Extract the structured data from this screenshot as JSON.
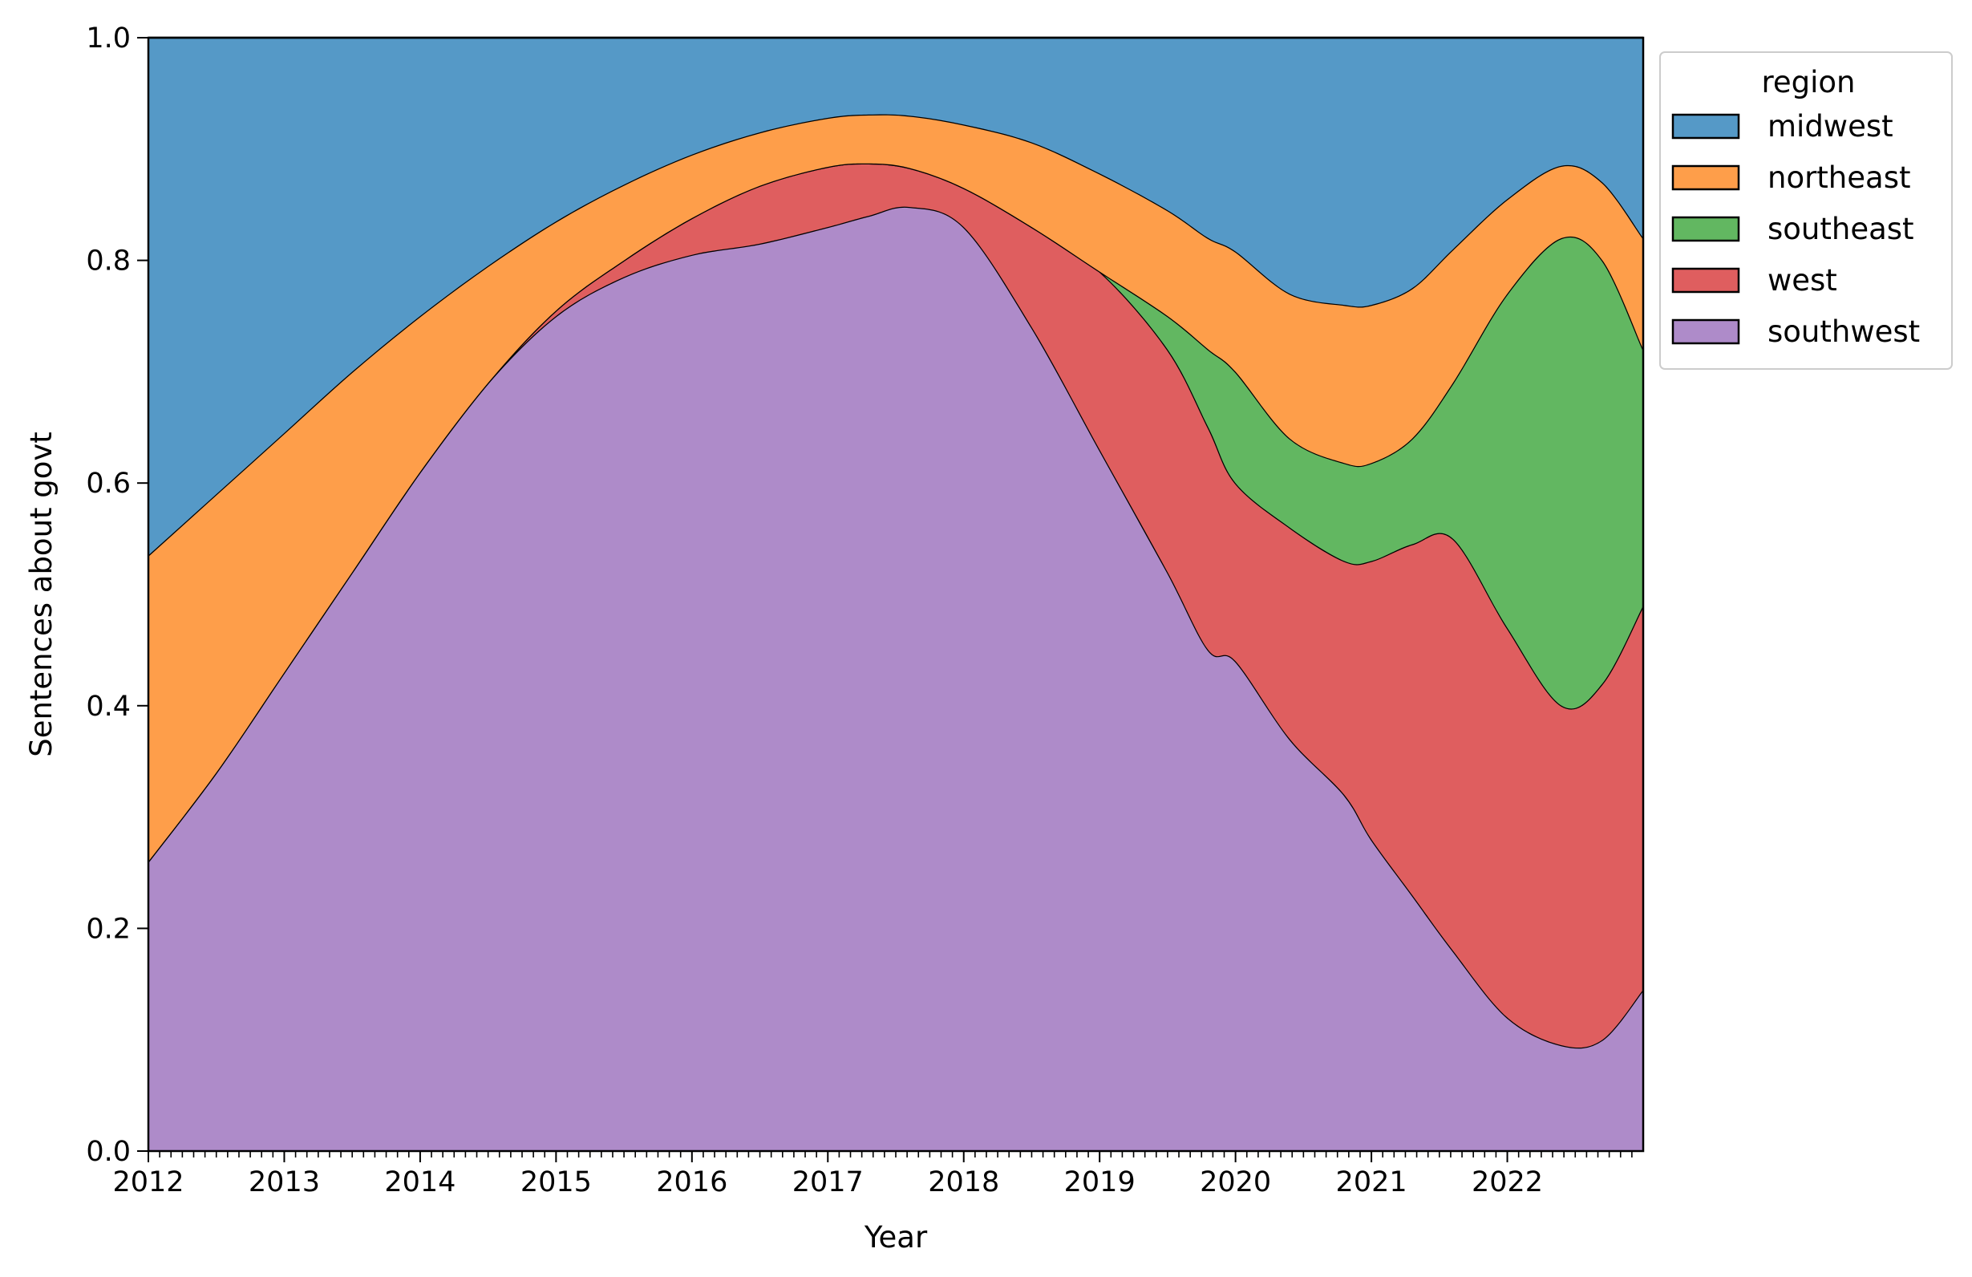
{
  "chart_data": {
    "type": "area",
    "stacked": true,
    "normalized": true,
    "xlabel": "Year",
    "ylabel": "Sentences about govt",
    "xlim": [
      2012,
      2023
    ],
    "ylim": [
      0,
      1
    ],
    "x_ticks": [
      "2012",
      "2013",
      "2014",
      "2015",
      "2016",
      "2017",
      "2018",
      "2019",
      "2020",
      "2021",
      "2022"
    ],
    "y_ticks": [
      "0.0",
      "0.2",
      "0.4",
      "0.6",
      "0.8",
      "1.0"
    ],
    "grid": false,
    "legend": {
      "title": "region",
      "placement": "outside top-right",
      "entries": [
        "midwest",
        "northeast",
        "southeast",
        "west",
        "southwest"
      ]
    },
    "x": [
      2012.0,
      2012.5,
      2013.0,
      2013.5,
      2014.0,
      2014.5,
      2015.0,
      2015.5,
      2016.0,
      2016.5,
      2017.0,
      2017.3,
      2017.6,
      2018.0,
      2018.5,
      2019.0,
      2019.5,
      2019.8,
      2020.0,
      2020.4,
      2020.8,
      2021.0,
      2021.3,
      2021.6,
      2022.0,
      2022.4,
      2022.7,
      2023.0
    ],
    "cumulative_boundaries": {
      "southwest": [
        0.26,
        0.34,
        0.43,
        0.52,
        0.61,
        0.69,
        0.75,
        0.785,
        0.805,
        0.815,
        0.83,
        0.84,
        0.848,
        0.83,
        0.74,
        0.63,
        0.52,
        0.45,
        0.44,
        0.37,
        0.32,
        0.28,
        0.23,
        0.18,
        0.12,
        0.095,
        0.1,
        0.145
      ],
      "west": [
        0.26,
        0.34,
        0.43,
        0.52,
        0.61,
        0.69,
        0.755,
        0.8,
        0.838,
        0.867,
        0.884,
        0.887,
        0.883,
        0.865,
        0.83,
        0.79,
        0.72,
        0.65,
        0.6,
        0.56,
        0.53,
        0.53,
        0.545,
        0.55,
        0.47,
        0.4,
        0.42,
        0.49
      ],
      "southeast": [
        0.26,
        0.34,
        0.43,
        0.52,
        0.61,
        0.69,
        0.755,
        0.8,
        0.838,
        0.867,
        0.884,
        0.887,
        0.883,
        0.865,
        0.83,
        0.79,
        0.75,
        0.72,
        0.7,
        0.64,
        0.618,
        0.618,
        0.64,
        0.69,
        0.77,
        0.82,
        0.8,
        0.72
      ],
      "northeast": [
        0.535,
        0.59,
        0.645,
        0.7,
        0.75,
        0.795,
        0.835,
        0.868,
        0.895,
        0.915,
        0.928,
        0.931,
        0.93,
        0.922,
        0.906,
        0.878,
        0.845,
        0.82,
        0.808,
        0.77,
        0.76,
        0.76,
        0.775,
        0.81,
        0.855,
        0.885,
        0.87,
        0.82
      ],
      "midwest": [
        1,
        1,
        1,
        1,
        1,
        1,
        1,
        1,
        1,
        1,
        1,
        1,
        1,
        1,
        1,
        1,
        1,
        1,
        1,
        1,
        1,
        1,
        1,
        1,
        1,
        1,
        1,
        1
      ]
    },
    "colors": {
      "midwest": "#5599c7",
      "northeast": "#fe9e4a",
      "southeast": "#62b761",
      "west": "#df5e5f",
      "southwest": "#ae8bc9"
    }
  }
}
